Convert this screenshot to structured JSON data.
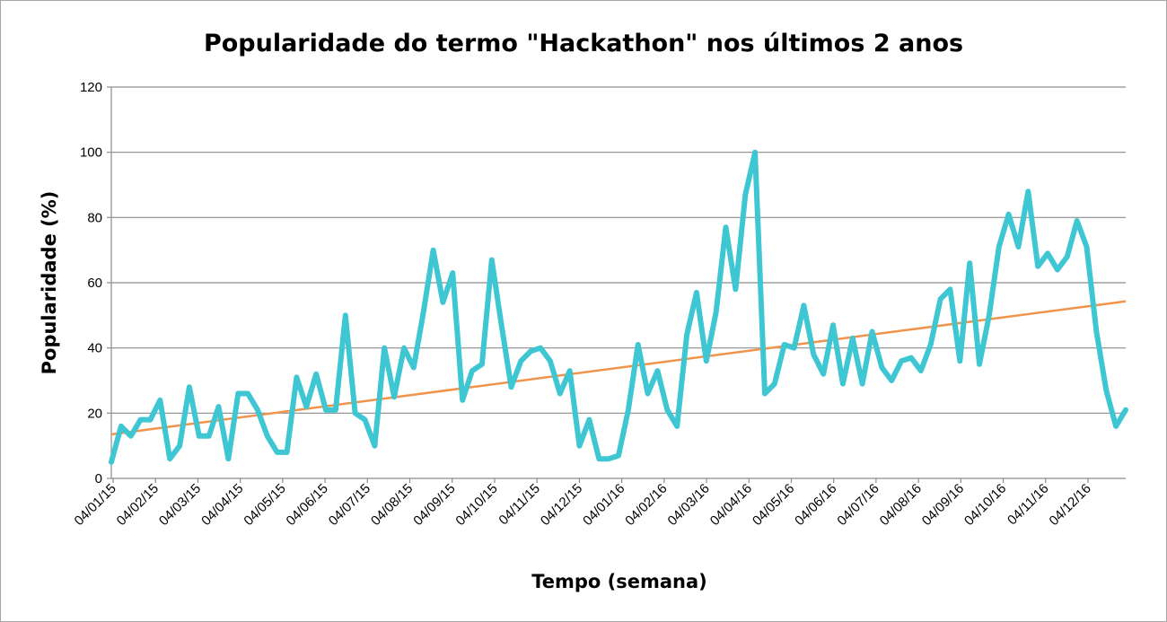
{
  "chart_data": {
    "type": "line",
    "title": "Popularidade do termo \"Hackathon\" nos últimos 2 anos",
    "xlabel": "Tempo (semana)",
    "ylabel": "Popularidade (%)",
    "ylim": [
      0,
      120
    ],
    "yticks": [
      0,
      20,
      40,
      60,
      80,
      100,
      120
    ],
    "grid": true,
    "x_tick_labels": [
      "04/01/15",
      "04/02/15",
      "04/03/15",
      "04/04/15",
      "04/05/15",
      "04/06/15",
      "04/07/15",
      "04/08/15",
      "04/09/15",
      "04/10/15",
      "04/11/15",
      "04/12/15",
      "04/01/16",
      "04/02/16",
      "04/03/16",
      "04/04/16",
      "04/05/16",
      "04/06/16",
      "04/07/16",
      "04/08/16",
      "04/09/16",
      "04/10/16",
      "04/11/16",
      "04/12/16"
    ],
    "series": [
      {
        "color": "#3ec6d3",
        "values": [
          5,
          16,
          13,
          18,
          18,
          24,
          6,
          10,
          28,
          13,
          13,
          22,
          6,
          26,
          26,
          21,
          13,
          8,
          8,
          31,
          22,
          32,
          21,
          21,
          50,
          20,
          18,
          10,
          40,
          25,
          40,
          34,
          51,
          70,
          54,
          63,
          24,
          33,
          35,
          67,
          47,
          28,
          36,
          39,
          40,
          36,
          26,
          33,
          10,
          18,
          6,
          6,
          7,
          21,
          41,
          26,
          33,
          21,
          16,
          44,
          57,
          36,
          51,
          77,
          58,
          87,
          100,
          26,
          29,
          41,
          40,
          53,
          38,
          32,
          47,
          29,
          43,
          29,
          45,
          34,
          30,
          36,
          37,
          33,
          41,
          55,
          58,
          36,
          66,
          35,
          50,
          71,
          81,
          71,
          88,
          65,
          69,
          64,
          68,
          79,
          71,
          45,
          27,
          16,
          21
        ]
      },
      {
        "color": "#f0944c",
        "trendline": true,
        "values": [
          13.5,
          54.3
        ]
      }
    ]
  }
}
